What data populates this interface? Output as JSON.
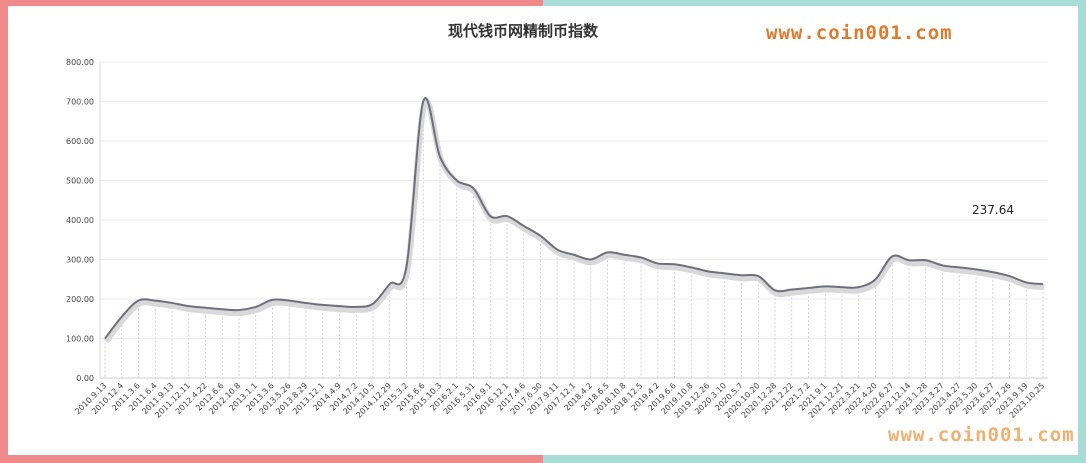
{
  "watermark_top": "www.coin001.com",
  "watermark_bottom": "www.coin001.com",
  "chart_data": {
    "type": "line",
    "title": "现代钱币网精制币指数",
    "xlabel": "",
    "ylabel": "",
    "ylim": [
      0,
      800
    ],
    "yticks": [
      "0.00",
      "100.00",
      "200.00",
      "300.00",
      "400.00",
      "500.00",
      "600.00",
      "700.00",
      "800.00"
    ],
    "grid": true,
    "last_value_label": "237.64",
    "categories": [
      "2010.9.13",
      "2010.12.4",
      "2011.3.6",
      "2011.6.4",
      "2011.9.13",
      "2011.12.11",
      "2012.4.22",
      "2012.6.6",
      "2012.10.8",
      "2013.1.1",
      "2013.3.6",
      "2013.5.26",
      "2013.8.29",
      "2013.12.1",
      "2014.4.9",
      "2014.7.2",
      "2014.10.5",
      "2014.12.29",
      "2015.3.2",
      "2015.6.6",
      "2015.10.3",
      "2016.2.1",
      "2016.5.31",
      "2016.9.1",
      "2016.12.1",
      "2017.4.6",
      "2017.6.30",
      "2017.9.11",
      "2017.12.1",
      "2018.4.2",
      "2018.6.5",
      "2018.10.8",
      "2018.12.5",
      "2019.4.2",
      "2019.6.6",
      "2019.10.8",
      "2019.12.26",
      "2020.3.10",
      "2020.5.7",
      "2020.10.20",
      "2020.12.28",
      "2021.2.22",
      "2021.7.2",
      "2021.9.1",
      "2021.12.21",
      "2022.3.21",
      "2022.4.20",
      "2022.6.27",
      "2022.12.14",
      "2023.1.28",
      "2023.3.27",
      "2023.4.27",
      "2023.5.30",
      "2023.6.27",
      "2023.7.26",
      "2023.9.19",
      "2023.10.25"
    ],
    "series": [
      {
        "values": [
          100,
          155,
          196,
          196,
          190,
          182,
          178,
          174,
          172,
          180,
          198,
          196,
          190,
          185,
          182,
          180,
          188,
          238,
          282,
          700,
          560,
          500,
          480,
          410,
          410,
          385,
          360,
          325,
          312,
          300,
          318,
          312,
          305,
          290,
          288,
          280,
          270,
          265,
          260,
          258,
          222,
          224,
          228,
          232,
          230,
          230,
          250,
          308,
          298,
          298,
          285,
          280,
          275,
          268,
          258,
          242,
          237.64
        ]
      }
    ]
  }
}
